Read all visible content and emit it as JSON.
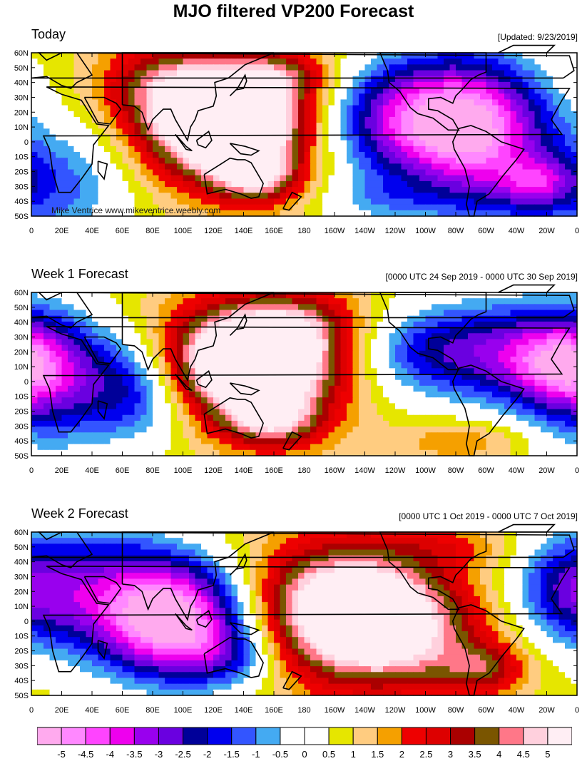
{
  "title": "MJO filtered VP200 Forecast",
  "credit": "Mike Ventrice www.mikeventrice.weebly.com",
  "lat_labels": [
    "60N",
    "50N",
    "40N",
    "30N",
    "20N",
    "10N",
    "0",
    "10S",
    "20S",
    "30S",
    "40S",
    "50S"
  ],
  "lon_labels": [
    "0",
    "20E",
    "40E",
    "60E",
    "80E",
    "100E",
    "120E",
    "140E",
    "160E",
    "180",
    "160W",
    "140W",
    "120W",
    "100W",
    "80W",
    "60W",
    "40W",
    "20W",
    "0"
  ],
  "panels": [
    {
      "title": "Today",
      "right_label": "[Updated: 9/23/2019]"
    },
    {
      "title": "Week 1 Forecast",
      "right_label": "[0000 UTC 24 Sep 2019 - 0000 UTC 30 Sep 2019]"
    },
    {
      "title": "Week 2 Forecast",
      "right_label": "[0000 UTC 1 Oct 2019 - 0000 UTC 7 Oct 2019]"
    }
  ],
  "colorbar": {
    "labels": [
      "-5",
      "-4.5",
      "-4",
      "-3.5",
      "-3",
      "-2.5",
      "-2",
      "-1.5",
      "-1",
      "-0.5",
      "0",
      "0.5",
      "1",
      "1.5",
      "2",
      "2.5",
      "3",
      "3.5",
      "4",
      "4.5",
      "5"
    ],
    "colors": [
      "#ffaaee",
      "#ff88ff",
      "#ff44ff",
      "#ee00ee",
      "#9900ee",
      "#6a00e0",
      "#000099",
      "#0000ee",
      "#3355ff",
      "#44aaf2",
      "#ffffff",
      "#ffffff",
      "#e6e600",
      "#ffcc80",
      "#f5a000",
      "#ee0000",
      "#dd0000",
      "#aa0000",
      "#7a5500",
      "#ff7788",
      "#ffd0dd",
      "#ffeef4"
    ]
  },
  "fields": {
    "levels": [
      -5,
      -4.5,
      -4,
      -3.5,
      -3,
      -2.5,
      -2,
      -1.5,
      -1,
      -0.5,
      0,
      0.5,
      1,
      1.5,
      2,
      2.5,
      3,
      3.5,
      4,
      4.5,
      5
    ],
    "bg": [
      {
        "amp": -1.2,
        "lon": 0,
        "lat": 0,
        "slon": 400,
        "slat": 400
      },
      {
        "amp": 1.8,
        "lon": 150,
        "lat": 10,
        "slon": 400,
        "slat": 400
      },
      {
        "amp": 0.3,
        "lon": 200,
        "lat": 0,
        "slon": 400,
        "slat": 400
      }
    ],
    "today": [
      {
        "amp": 8.0,
        "lon": 130,
        "lat": 12,
        "slon": 36,
        "slat": 26
      },
      {
        "amp": 2.5,
        "lon": 150,
        "lat": -25,
        "slon": 20,
        "slat": 12
      },
      {
        "amp": 2.2,
        "lon": 85,
        "lat": 40,
        "slon": 30,
        "slat": 20
      },
      {
        "amp": 2.0,
        "lon": 165,
        "lat": 45,
        "slon": 25,
        "slat": 12
      },
      {
        "amp": -5.5,
        "lon": 262,
        "lat": 15,
        "slon": 45,
        "slat": 30
      },
      {
        "amp": -2.5,
        "lon": 300,
        "lat": -5,
        "slon": 30,
        "slat": 40
      },
      {
        "amp": -2.2,
        "lon": 335,
        "lat": -28,
        "slon": 18,
        "slat": 12
      },
      {
        "amp": -2.0,
        "lon": 15,
        "lat": -30,
        "slon": 35,
        "slat": 30
      },
      {
        "amp": -1.2,
        "lon": 230,
        "lat": -40,
        "slon": 30,
        "slat": 12
      }
    ],
    "week1": [
      {
        "amp": 7.8,
        "lon": 145,
        "lat": 12,
        "slon": 40,
        "slat": 26
      },
      {
        "amp": 2.5,
        "lon": 160,
        "lat": -28,
        "slon": 22,
        "slat": 12
      },
      {
        "amp": 1.5,
        "lon": 180,
        "lat": 40,
        "slon": 30,
        "slat": 15
      },
      {
        "amp": -3.0,
        "lon": 70,
        "lat": -5,
        "slon": 28,
        "slat": 25
      },
      {
        "amp": -2.5,
        "lon": 10,
        "lat": 0,
        "slon": 30,
        "slat": 35
      },
      {
        "amp": -3.2,
        "lon": 305,
        "lat": 20,
        "slon": 50,
        "slat": 25
      },
      {
        "amp": -1.0,
        "lon": 250,
        "lat": 20,
        "slon": 35,
        "slat": 20
      },
      {
        "amp": -2.5,
        "lon": 350,
        "lat": 10,
        "slon": 25,
        "slat": 20
      },
      {
        "amp": 1.2,
        "lon": 285,
        "lat": -40,
        "slon": 30,
        "slat": 10
      }
    ],
    "week2": [
      {
        "amp": -6.0,
        "lon": 95,
        "lat": 0,
        "slon": 38,
        "slat": 28
      },
      {
        "amp": -2.5,
        "lon": 40,
        "lat": 25,
        "slon": 45,
        "slat": 30
      },
      {
        "amp": -1.5,
        "lon": 130,
        "lat": -25,
        "slon": 25,
        "slat": 15
      },
      {
        "amp": 6.0,
        "lon": 210,
        "lat": 8,
        "slon": 45,
        "slat": 30
      },
      {
        "amp": 2.2,
        "lon": 300,
        "lat": -32,
        "slon": 20,
        "slat": 12
      },
      {
        "amp": 2.0,
        "lon": 250,
        "lat": -15,
        "slon": 40,
        "slat": 25
      },
      {
        "amp": -2.2,
        "lon": 355,
        "lat": 20,
        "slon": 25,
        "slat": 25
      },
      {
        "amp": 1.0,
        "lon": 280,
        "lat": 50,
        "slon": 30,
        "slat": 10
      }
    ]
  }
}
